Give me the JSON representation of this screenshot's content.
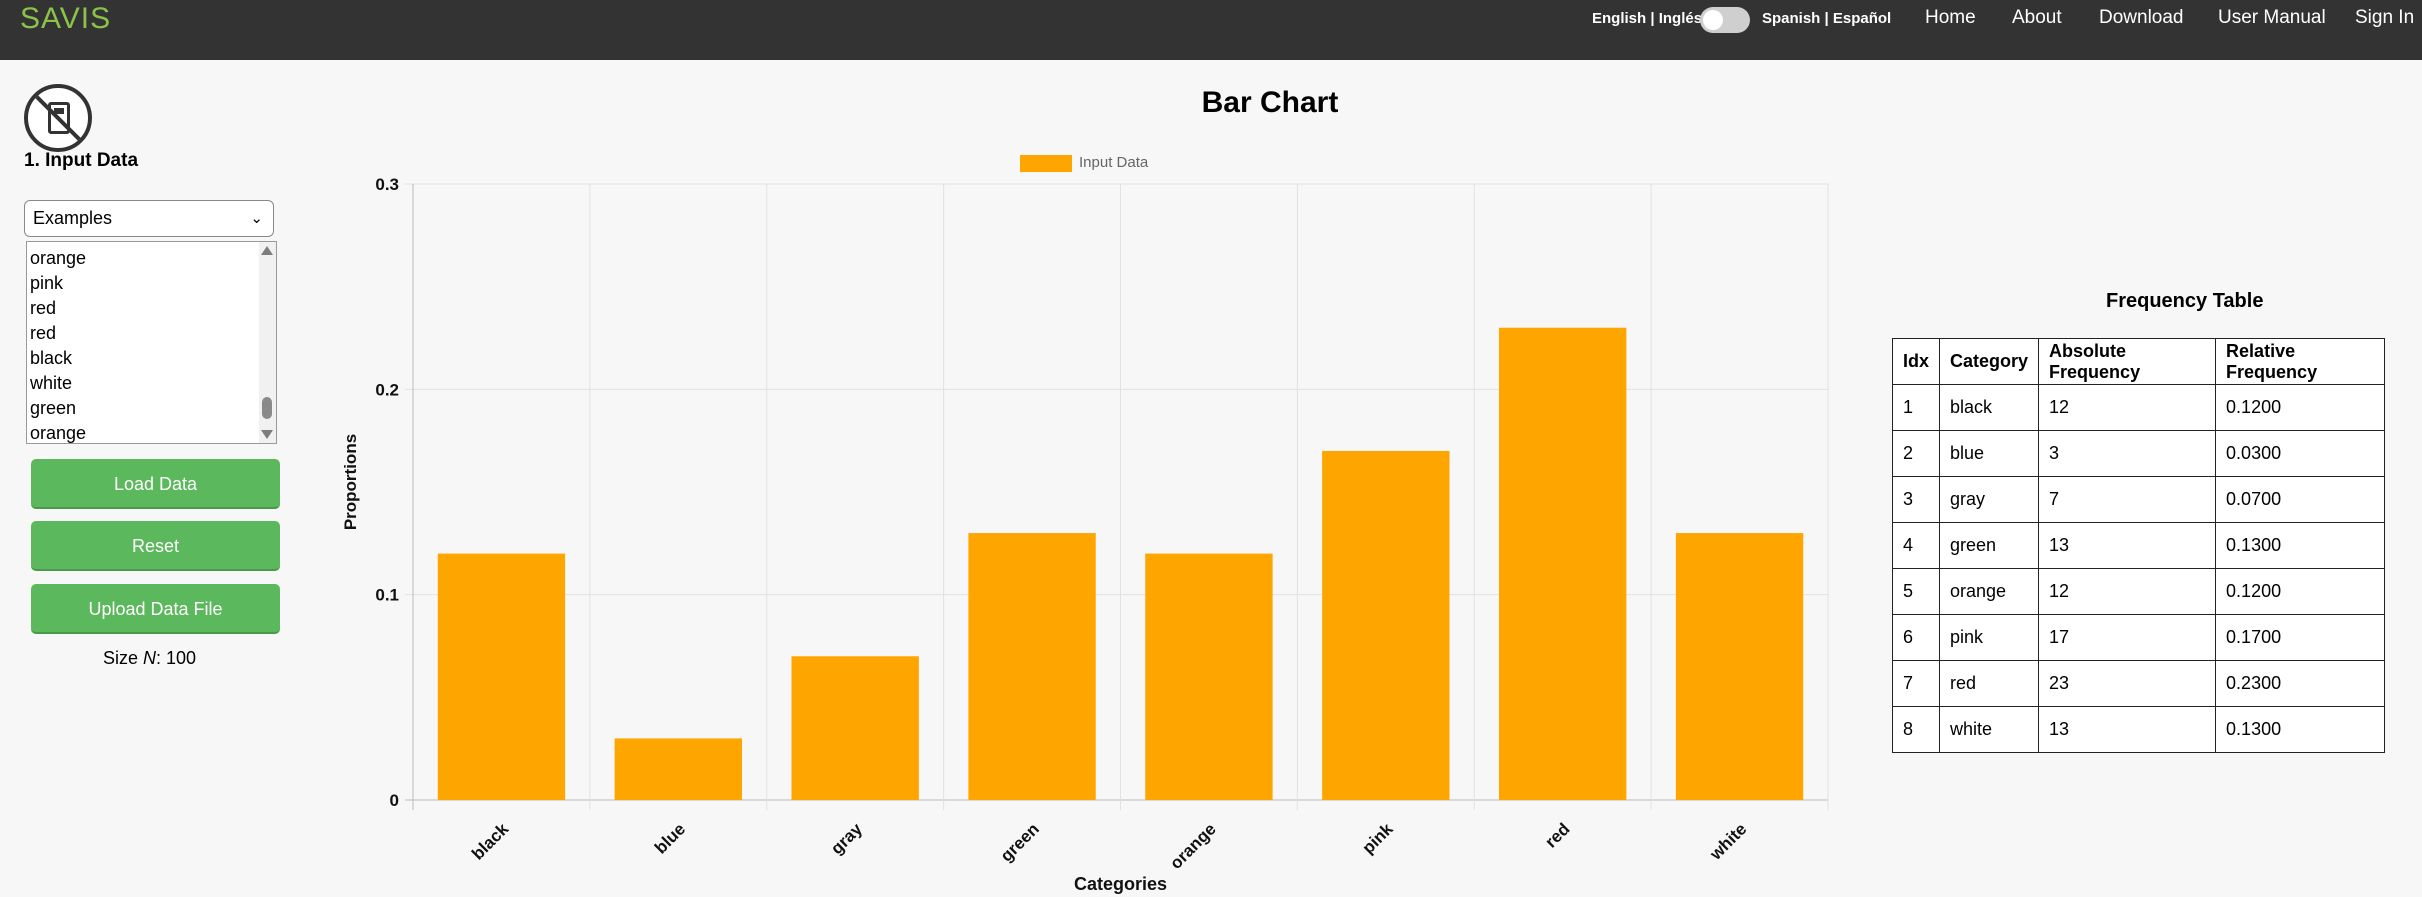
{
  "navbar": {
    "brand": "SAVIS",
    "lang_en": "English | Inglés",
    "lang_es": "Spanish | Español",
    "links": [
      "Home",
      "About",
      "Download",
      "User Manual",
      "Sign In"
    ]
  },
  "left_panel": {
    "section_title": "1. Input Data",
    "examples_select": "Examples",
    "data_items": [
      "orange",
      "pink",
      "red",
      "red",
      "black",
      "white",
      "green",
      "orange"
    ],
    "buttons": {
      "load": "Load Data",
      "reset": "Reset",
      "upload": "Upload Data File"
    },
    "size_prefix": "Size ",
    "size_n": "N",
    "size_value": ": 100"
  },
  "chart_data": {
    "type": "bar",
    "title": "Bar Chart",
    "categories": [
      "black",
      "blue",
      "gray",
      "green",
      "orange",
      "pink",
      "red",
      "white"
    ],
    "series": [
      {
        "name": "Input Data",
        "values": [
          0.12,
          0.03,
          0.07,
          0.13,
          0.12,
          0.17,
          0.23,
          0.13
        ],
        "color": "#ffa500"
      }
    ],
    "xlabel": "Categories",
    "ylabel": "Proportions",
    "ylim": [
      0,
      0.3
    ],
    "yticks": [
      "0",
      "0.1",
      "0.2",
      "0.3"
    ],
    "grid": true,
    "legend": "top-center"
  },
  "frequency_table": {
    "title": "Frequency Table",
    "headers": [
      "Idx",
      "Category",
      "Absolute Frequency",
      "Relative Frequency"
    ],
    "rows": [
      [
        "1",
        "black",
        "12",
        "0.1200"
      ],
      [
        "2",
        "blue",
        "3",
        "0.0300"
      ],
      [
        "3",
        "gray",
        "7",
        "0.0700"
      ],
      [
        "4",
        "green",
        "13",
        "0.1300"
      ],
      [
        "5",
        "orange",
        "12",
        "0.1200"
      ],
      [
        "6",
        "pink",
        "17",
        "0.1700"
      ],
      [
        "7",
        "red",
        "23",
        "0.2300"
      ],
      [
        "8",
        "white",
        "13",
        "0.1300"
      ]
    ]
  },
  "colors": {
    "navbar": "#333333",
    "brand": "#8bc34a",
    "button": "#5cb85c",
    "bar": "#ffa500"
  }
}
